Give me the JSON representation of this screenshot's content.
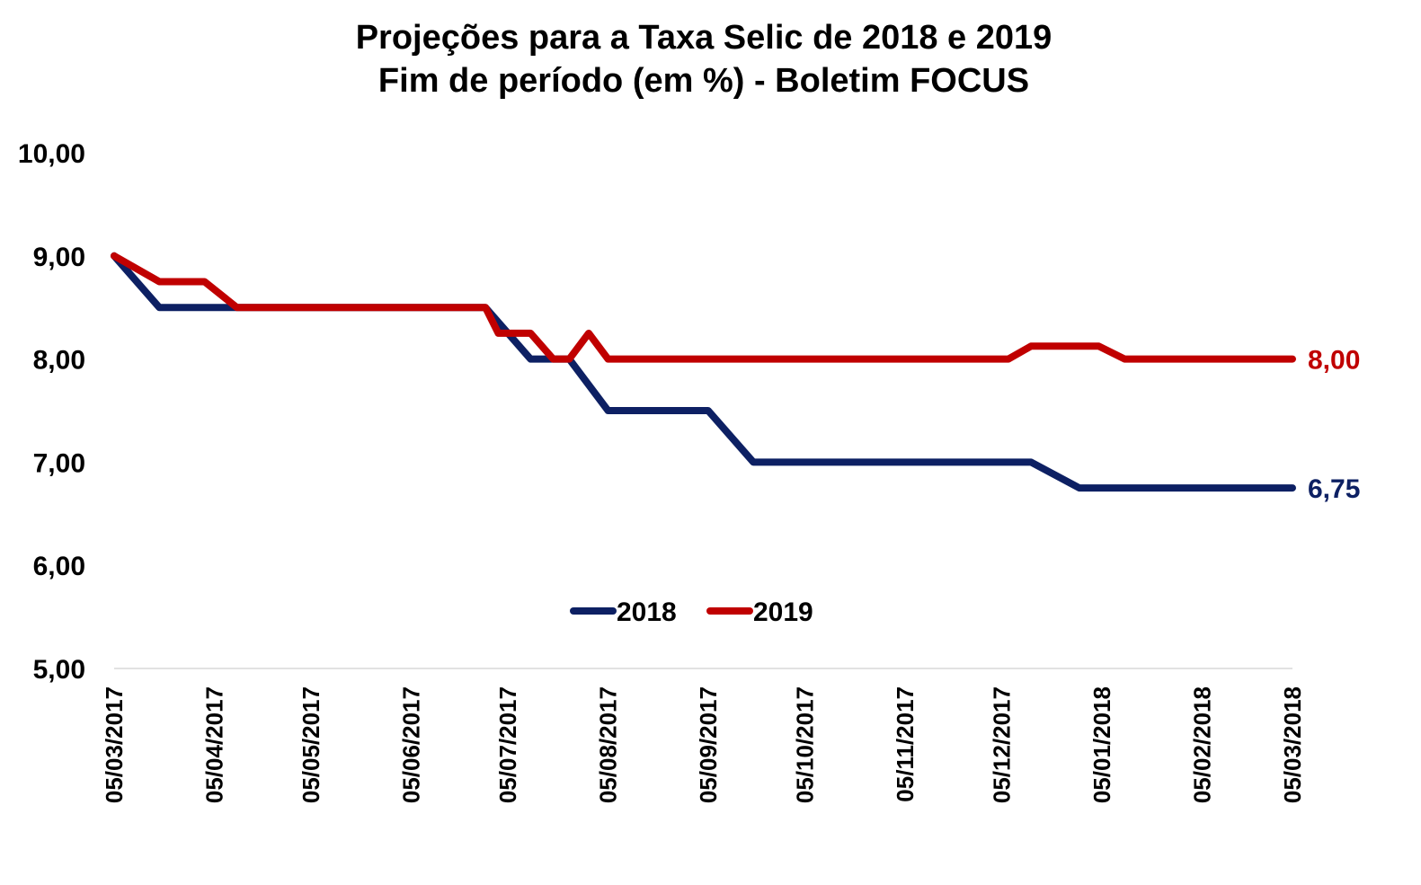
{
  "chart_data": {
    "type": "line",
    "title": [
      "Projeções para a Taxa Selic de 2018 e 2019",
      "Fim de período (em %) - Boletim FOCUS"
    ],
    "ylim": [
      5,
      10
    ],
    "yticks": [
      "5,00",
      "6,00",
      "7,00",
      "8,00",
      "9,00",
      "10,00"
    ],
    "ytick_values": [
      5,
      6,
      7,
      8,
      9,
      10
    ],
    "xlim": [
      "2017-03-05",
      "2018-03-05"
    ],
    "xticks": [
      {
        "label": "05/03/2017",
        "date": "2017-03-05"
      },
      {
        "label": "05/04/2017",
        "date": "2017-04-05"
      },
      {
        "label": "05/05/2017",
        "date": "2017-05-05"
      },
      {
        "label": "05/06/2017",
        "date": "2017-06-05"
      },
      {
        "label": "05/07/2017",
        "date": "2017-07-05"
      },
      {
        "label": "05/08/2017",
        "date": "2017-08-05"
      },
      {
        "label": "05/09/2017",
        "date": "2017-09-05"
      },
      {
        "label": "05/10/2017",
        "date": "2017-10-05"
      },
      {
        "label": "05/11/2017",
        "date": "2017-11-05"
      },
      {
        "label": "05/12/2017",
        "date": "2017-12-05"
      },
      {
        "label": "05/01/2018",
        "date": "2018-01-05"
      },
      {
        "label": "05/02/2018",
        "date": "2018-02-05"
      },
      {
        "label": "05/03/2018",
        "date": "2018-03-05"
      }
    ],
    "grid": false,
    "legend_position": "bottom-center",
    "series": [
      {
        "name": "2018",
        "color": "#0d2063",
        "end_label": "6,75",
        "points": [
          [
            "2017-03-05",
            9.0
          ],
          [
            "2017-03-19",
            8.5
          ],
          [
            "2017-04-09",
            8.5
          ],
          [
            "2017-04-12",
            8.5
          ],
          [
            "2017-06-28",
            8.5
          ],
          [
            "2017-07-12",
            8.0
          ],
          [
            "2017-07-19",
            8.0
          ],
          [
            "2017-07-24",
            8.0
          ],
          [
            "2017-08-05",
            7.5
          ],
          [
            "2017-09-05",
            7.5
          ],
          [
            "2017-09-19",
            7.0
          ],
          [
            "2017-12-14",
            7.0
          ],
          [
            "2017-12-29",
            6.75
          ],
          [
            "2018-03-05",
            6.75
          ]
        ]
      },
      {
        "name": "2019",
        "color": "#c00000",
        "end_label": "8,00",
        "points": [
          [
            "2017-03-05",
            9.0
          ],
          [
            "2017-03-19",
            8.75
          ],
          [
            "2017-04-02",
            8.75
          ],
          [
            "2017-04-12",
            8.5
          ],
          [
            "2017-06-28",
            8.5
          ],
          [
            "2017-07-02",
            8.25
          ],
          [
            "2017-07-12",
            8.25
          ],
          [
            "2017-07-19",
            8.0
          ],
          [
            "2017-07-24",
            8.0
          ],
          [
            "2017-07-30",
            8.25
          ],
          [
            "2017-08-05",
            8.0
          ],
          [
            "2017-12-07",
            8.0
          ],
          [
            "2017-12-14",
            8.125
          ],
          [
            "2018-01-04",
            8.125
          ],
          [
            "2018-01-12",
            8.0
          ],
          [
            "2018-03-05",
            8.0
          ]
        ]
      }
    ]
  }
}
